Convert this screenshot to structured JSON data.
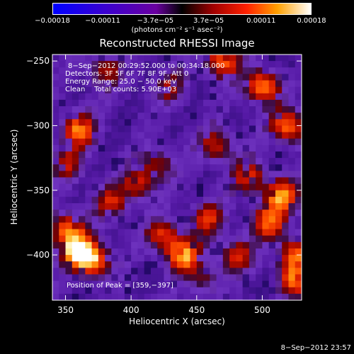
{
  "chart_data": {
    "type": "heatmap",
    "title": "Reconstructed RHESSI Image",
    "xlabel": "Heliocentric X (arcsec)",
    "ylabel": "Heliocentric Y (arcsec)",
    "xlim": [
      340,
      530
    ],
    "ylim": [
      -435,
      -245
    ],
    "x_ticks": [
      350,
      400,
      450,
      500
    ],
    "x_tick_labels": [
      "350",
      "400",
      "450",
      "500"
    ],
    "y_ticks": [
      -250,
      -300,
      -350,
      -400
    ],
    "y_tick_labels": [
      "−250",
      "−300",
      "−350",
      "−400"
    ],
    "colorbar": {
      "range": [
        -0.00018,
        0.00018
      ],
      "ticks": [
        -0.00018,
        -0.00011,
        -3.7e-05,
        3.7e-05,
        0.00011,
        0.00018
      ],
      "tick_labels": [
        "−0.00018",
        "−0.00011",
        "−3.7e−05",
        "3.7e−05",
        "0.00011",
        "0.00018"
      ],
      "unit_text": "(photons cm⁻² s⁻¹ asec⁻²)"
    },
    "peak": [
      359,
      -397
    ],
    "bright_regions": [
      {
        "x": 359,
        "y": -397,
        "intensity": 1.0
      },
      {
        "x": 372,
        "y": -405,
        "intensity": 0.85
      },
      {
        "x": 351,
        "y": -380,
        "intensity": 0.75
      },
      {
        "x": 440,
        "y": -400,
        "intensity": 0.9
      },
      {
        "x": 425,
        "y": -385,
        "intensity": 0.6
      },
      {
        "x": 458,
        "y": -372,
        "intensity": 0.55
      },
      {
        "x": 360,
        "y": -303,
        "intensity": 0.8
      },
      {
        "x": 352,
        "y": -330,
        "intensity": 0.45
      },
      {
        "x": 405,
        "y": -345,
        "intensity": 0.55
      },
      {
        "x": 420,
        "y": -330,
        "intensity": 0.45
      },
      {
        "x": 385,
        "y": -360,
        "intensity": 0.5
      },
      {
        "x": 470,
        "y": -250,
        "intensity": 0.8
      },
      {
        "x": 500,
        "y": -270,
        "intensity": 0.85
      },
      {
        "x": 520,
        "y": -300,
        "intensity": 0.8
      },
      {
        "x": 465,
        "y": -315,
        "intensity": 0.55
      },
      {
        "x": 490,
        "y": -340,
        "intensity": 0.6
      },
      {
        "x": 515,
        "y": -355,
        "intensity": 0.85
      },
      {
        "x": 505,
        "y": -375,
        "intensity": 0.7
      },
      {
        "x": 480,
        "y": -400,
        "intensity": 0.55
      },
      {
        "x": 525,
        "y": -400,
        "intensity": 0.75
      },
      {
        "x": 525,
        "y": -420,
        "intensity": 0.65
      },
      {
        "x": 380,
        "y": -258,
        "intensity": 0.45
      },
      {
        "x": 430,
        "y": -270,
        "intensity": 0.4
      },
      {
        "x": 455,
        "y": -420,
        "intensity": 0.35
      }
    ]
  },
  "info": {
    "time_range": "8−Sep−2012 00:29:52.000 to 00:34:18.000",
    "detectors": "Detectors: 3F 5F 6F 7F 8F 9F, Att 0",
    "energy": "Energy Range: 25.0 − 50.0 keV",
    "clean": "Clean    Total counts: 5.90E+03",
    "peak_text": "Position of Peak = [359,−397]"
  },
  "footer": {
    "date": "8−Sep−2012 23:57"
  }
}
